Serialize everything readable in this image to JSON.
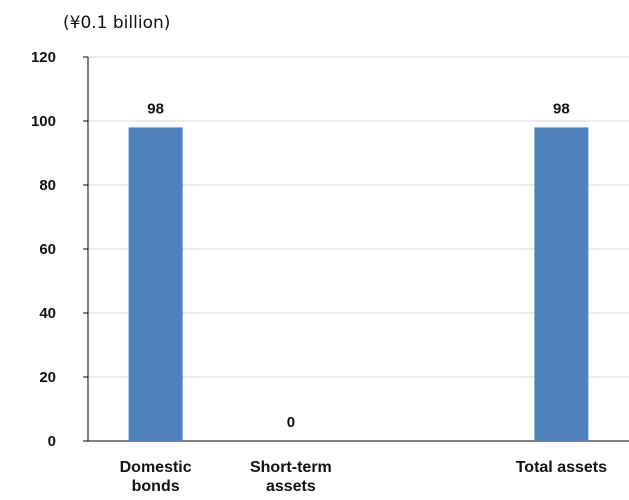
{
  "chart_data": {
    "type": "bar",
    "unit_label": "(¥0.1 billion)",
    "categories": [
      [
        "Domestic",
        "bonds"
      ],
      [
        "Short-term",
        "assets"
      ],
      [
        "",
        ""
      ],
      [
        "Total assets"
      ]
    ],
    "values": [
      98,
      0,
      null,
      98
    ],
    "data_labels": [
      "98",
      "0",
      "",
      "98"
    ],
    "y_ticks": [
      0,
      20,
      40,
      60,
      80,
      100,
      120
    ],
    "ylim": [
      0,
      120
    ],
    "grid": true,
    "legend": "none",
    "bar_color": "#4f81bd",
    "grid_color": "#d9d9d9",
    "axis_color": "#000000"
  }
}
